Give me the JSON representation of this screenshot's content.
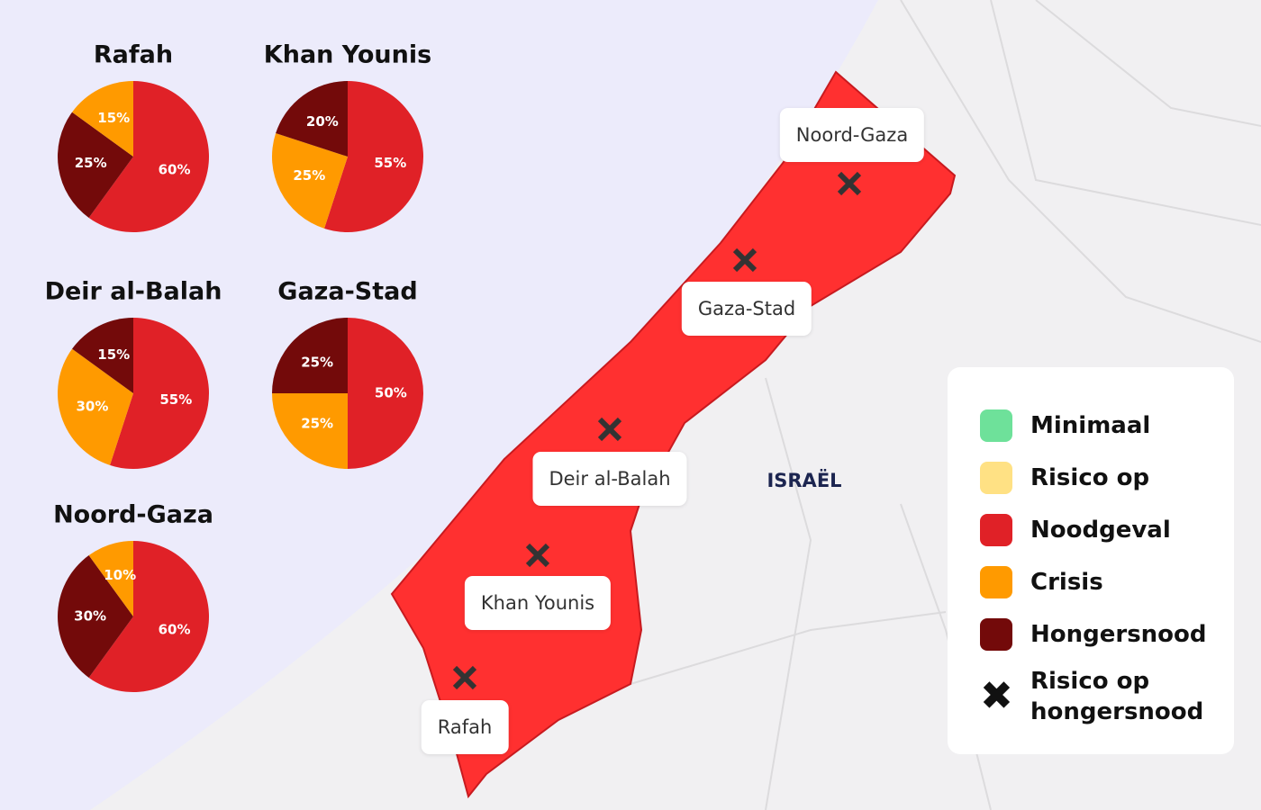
{
  "chart_data": [
    {
      "type": "pie",
      "title": "Rafah",
      "values": [
        60,
        25,
        15
      ],
      "value_labels": [
        "60%",
        "25%",
        "15%"
      ],
      "colors": [
        "#e02127",
        "#730a0a",
        "#ff9a00"
      ]
    },
    {
      "type": "pie",
      "title": "Khan Younis",
      "values": [
        55,
        25,
        20
      ],
      "value_labels": [
        "55%",
        "25%",
        "20%"
      ],
      "colors": [
        "#e02127",
        "#ff9a00",
        "#730a0a"
      ]
    },
    {
      "type": "pie",
      "title": "Deir al-Balah",
      "values": [
        55,
        30,
        15
      ],
      "value_labels": [
        "55%",
        "30%",
        "15%"
      ],
      "colors": [
        "#e02127",
        "#ff9a00",
        "#730a0a"
      ]
    },
    {
      "type": "pie",
      "title": "Gaza-Stad",
      "values": [
        50,
        25,
        25
      ],
      "value_labels": [
        "50%",
        "25%",
        "25%"
      ],
      "colors": [
        "#e02127",
        "#ff9a00",
        "#730a0a"
      ]
    },
    {
      "type": "pie",
      "title": "Noord-Gaza",
      "values": [
        60,
        30,
        10
      ],
      "value_labels": [
        "60%",
        "30%",
        "10%"
      ],
      "colors": [
        "#e02127",
        "#730a0a",
        "#ff9a00"
      ]
    }
  ],
  "map": {
    "country_label": "ISRAËL",
    "places": [
      "Noord-Gaza",
      "Gaza-Stad",
      "Deir al-Balah",
      "Khan Younis",
      "Rafah"
    ]
  },
  "legend": {
    "items": [
      {
        "label": "Minimaal",
        "color": "#6ee19a"
      },
      {
        "label": "Risico op",
        "color": "#ffe184"
      },
      {
        "label": "Noodgeval",
        "color": "#e02127"
      },
      {
        "label": "Crisis",
        "color": "#ff9a00"
      },
      {
        "label": "Hongersnood",
        "color": "#730a0a"
      }
    ],
    "marker_label": "Risico op hongersnood"
  }
}
